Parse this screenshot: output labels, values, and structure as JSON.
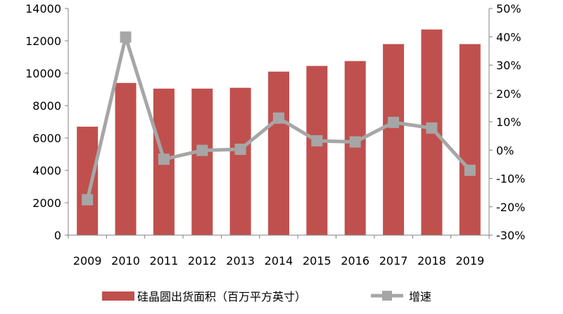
{
  "chart_data": {
    "type": "bar+line",
    "categories": [
      "2009",
      "2010",
      "2011",
      "2012",
      "2013",
      "2014",
      "2015",
      "2016",
      "2017",
      "2018",
      "2019"
    ],
    "series": [
      {
        "name": "硅晶圆出货面积（百万平方英寸）",
        "type": "bar",
        "axis": "left",
        "color": "#C0504D",
        "values": [
          6700,
          9400,
          9050,
          9050,
          9100,
          10100,
          10450,
          10750,
          11800,
          12700,
          11800
        ]
      },
      {
        "name": "增速",
        "type": "line",
        "axis": "right",
        "color": "#A6A6A6",
        "marker": "square",
        "values": [
          -17.5,
          39.9,
          -3.2,
          -0.1,
          0.3,
          11.3,
          3.3,
          2.9,
          9.8,
          7.8,
          -7.1
        ]
      }
    ],
    "y_left": {
      "min": 0,
      "max": 14000,
      "ticks": [
        "0",
        "2000",
        "4000",
        "6000",
        "8000",
        "10000",
        "12000",
        "14000"
      ]
    },
    "y_right": {
      "min": -30,
      "max": 50,
      "ticks": [
        "-30%",
        "-20%",
        "-10%",
        "0%",
        "10%",
        "20%",
        "30%",
        "40%",
        "50%"
      ]
    },
    "grid": false,
    "legend_position": "bottom"
  }
}
